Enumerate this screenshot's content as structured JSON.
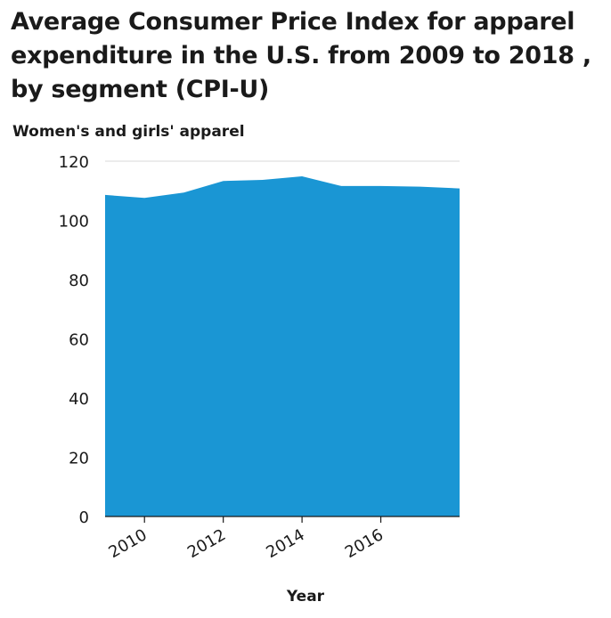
{
  "chart_data": {
    "type": "area",
    "title": "Average Consumer Price Index for apparel expenditure in the U.S. from 2009 to 2018 , by segment (CPI-U)",
    "xlabel": "Year",
    "ylabel": "Women's and girls' apparel",
    "x": [
      2009,
      2010,
      2011,
      2012,
      2013,
      2014,
      2015,
      2016,
      2017,
      2018
    ],
    "series": [
      {
        "values": [
          108.6,
          107.6,
          109.4,
          113.3,
          113.7,
          114.9,
          111.6,
          111.6,
          111.4,
          110.8
        ],
        "color": "#1a96d4"
      }
    ],
    "xlim": [
      2009,
      2018
    ],
    "ylim": [
      0,
      120
    ],
    "yticks": [
      0,
      20,
      40,
      60,
      80,
      100,
      120
    ],
    "xticks": [
      2010,
      2012,
      2014,
      2016
    ],
    "grid": "horizontal",
    "gridline_color": "#d9d9d9",
    "axis_color": "#1a1a1a"
  }
}
